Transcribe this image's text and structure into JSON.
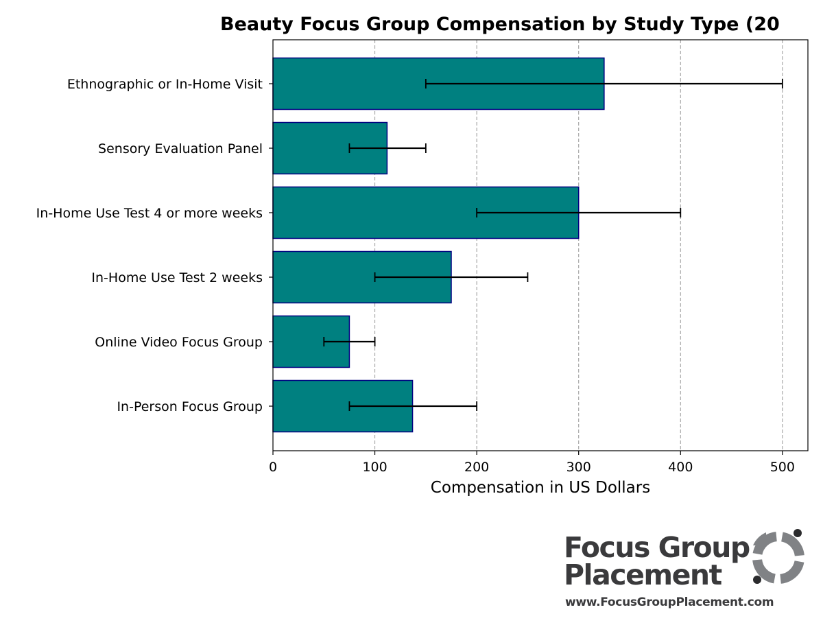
{
  "chart_data": {
    "type": "bar",
    "orientation": "horizontal",
    "title": "Beauty Focus Group Compensation by Study Type (20",
    "xlabel": "Compensation in US Dollars",
    "ylabel": "",
    "xlim": [
      0,
      525
    ],
    "xticks": [
      0,
      100,
      200,
      300,
      400,
      500
    ],
    "grid": "x dashed",
    "legend": "none",
    "categories": [
      "In-Person Focus Group",
      "Online Video Focus Group",
      "In-Home Use Test 2 weeks",
      "In-Home Use Test 4 or more weeks",
      "Sensory Evaluation Panel",
      "Ethnographic or In-Home Visit"
    ],
    "values": [
      137,
      75,
      175,
      300,
      112,
      325
    ],
    "error_low": [
      75,
      50,
      100,
      200,
      75,
      150
    ],
    "error_high": [
      200,
      100,
      250,
      400,
      150,
      500
    ],
    "colors": {
      "bar_fill": "#008080",
      "bar_edge": "#000080",
      "error": "#000000",
      "grid": "#a0a0a0"
    }
  },
  "logo": {
    "line1": "Focus Group",
    "line2": "Placement",
    "url": "www.FocusGroupPlacement.com",
    "colors": {
      "text": "#3a3a3c",
      "mark": "#808285"
    }
  }
}
